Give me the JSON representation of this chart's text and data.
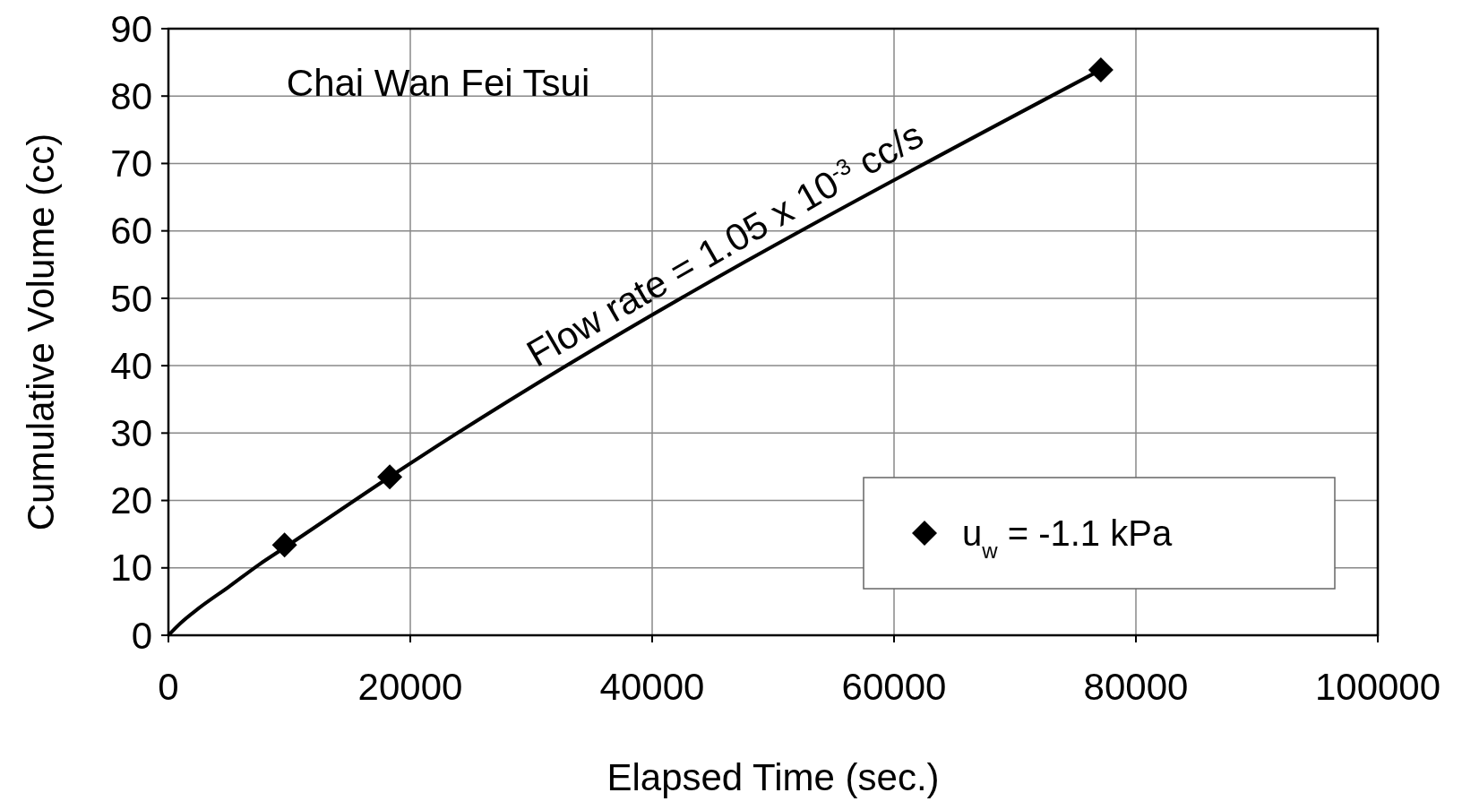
{
  "chart_data": {
    "type": "line",
    "title": "Chai Wan Fei Tsui",
    "xlabel": "Elapsed Time (sec.)",
    "ylabel": "Cumulative Volume (cc)",
    "xlim": [
      0,
      100000
    ],
    "xticks": [
      0,
      20000,
      40000,
      60000,
      80000,
      100000
    ],
    "ylim": [
      0,
      90
    ],
    "yticks": [
      0,
      10,
      20,
      30,
      40,
      50,
      60,
      70,
      80,
      90
    ],
    "grid": true,
    "legend": "bottom right",
    "annotations": [
      "Flow rate = 1.05 x 10$^{-3}$ cc/s"
    ],
    "series": [
      {
        "color": "#000000",
        "marker": "none",
        "x": [
          0,
          1000,
          2500,
          5000,
          7500,
          9600,
          18300,
          77100
        ],
        "values": [
          0,
          1.8,
          4,
          7.2,
          10.5,
          13,
          23.5,
          83.9
        ]
      },
      {
        "type": "scatter",
        "name": "u$_{w}$ = -1.1 kPa",
        "color": "#000000",
        "marker": "diamond",
        "x": [
          9600,
          18300,
          77100
        ],
        "values": [
          13.4,
          23.5,
          83.9
        ]
      }
    ]
  }
}
